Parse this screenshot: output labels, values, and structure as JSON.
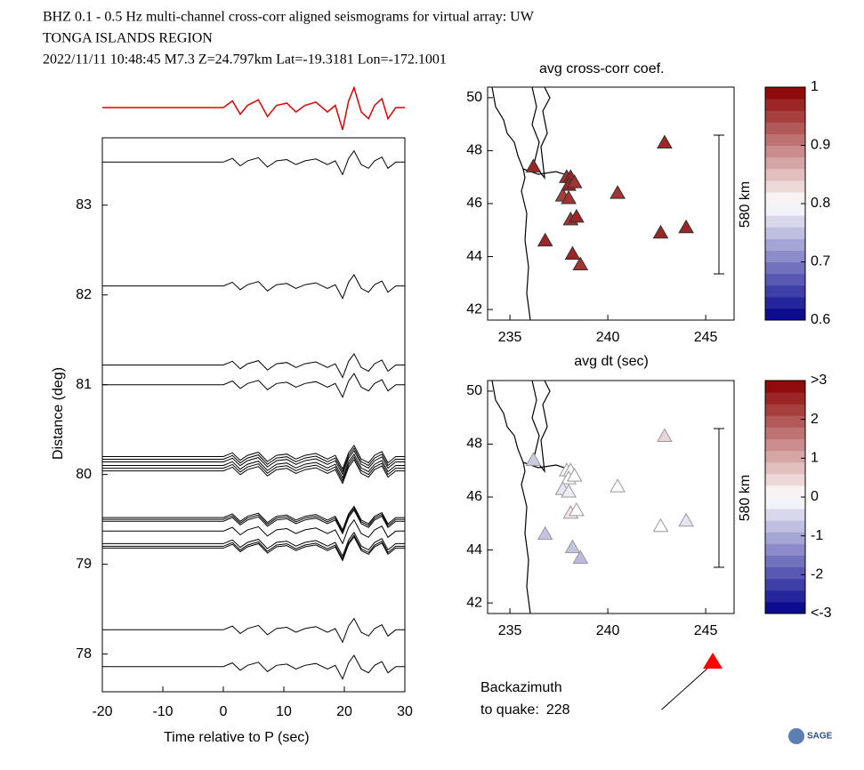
{
  "header": {
    "lines": [
      "BHZ  0.1 - 0.5 Hz  multi-channel cross-corr aligned seismograms for virtual array: UW",
      "TONGA ISLANDS REGION",
      "2022/11/11  10:48:45  M7.3  Z=24.797km Lat=-19.3181 Lon=-172.1001"
    ],
    "logo": "SAGE"
  },
  "backazimuth": {
    "label1": "Backazimuth",
    "label2": "to quake:",
    "value": 228
  },
  "chart_data": [
    {
      "type": "seismogram",
      "xlabel": "Time relative to P (sec)",
      "ylabel": "Distance (deg)",
      "xlim": [
        -20,
        30
      ],
      "xticks": [
        -20,
        -10,
        0,
        10,
        20,
        30
      ],
      "ylim": [
        77.58,
        83.75
      ],
      "yticks": [
        78,
        79,
        80,
        81,
        82,
        83
      ],
      "stack_color": "#e00000",
      "trace_color": "#000000",
      "waveform": {
        "t": [
          -20,
          0,
          1.5,
          2.8,
          4,
          5.8,
          7.3,
          8.8,
          10.5,
          12,
          13.5,
          15.3,
          17.2,
          18.5,
          19.7,
          20.7,
          21.6,
          22.8,
          24,
          25,
          26.2,
          27.2,
          28.5,
          30
        ],
        "amp": [
          0,
          0,
          0.3,
          -0.3,
          0.1,
          0.35,
          -0.4,
          0.1,
          0.2,
          -0.2,
          0.1,
          0.25,
          -0.2,
          0.1,
          -1,
          0.3,
          0.9,
          -0.2,
          -0.5,
          0.1,
          0.4,
          -0.5,
          0,
          0
        ]
      },
      "distances": [
        83.48,
        82.1,
        81.22,
        81.0,
        80.2,
        80.17,
        80.14,
        80.1,
        80.07,
        80.04,
        79.52,
        79.5,
        79.48,
        79.37,
        79.23,
        79.2,
        79.18,
        78.27,
        77.86
      ]
    },
    {
      "type": "map-scatter",
      "title": "avg cross-corr coef.",
      "xlim": [
        233.86,
        246.45
      ],
      "xticks": [
        235,
        240,
        245
      ],
      "ylim": [
        41.6,
        50.4
      ],
      "yticks": [
        42,
        44,
        46,
        48,
        50
      ],
      "x": [
        236.2,
        237.9,
        238.1,
        238.0,
        238.3,
        237.7,
        238.0,
        238.1,
        238.4,
        240.5,
        242.9,
        236.8,
        238.2,
        238.6,
        242.7,
        244.0
      ],
      "y": [
        47.4,
        47.0,
        47.0,
        46.7,
        46.8,
        46.3,
        46.2,
        45.4,
        45.5,
        46.4,
        48.3,
        44.6,
        44.1,
        43.7,
        44.9,
        45.1
      ],
      "values": [
        0.97,
        0.96,
        0.97,
        0.97,
        0.96,
        0.95,
        0.96,
        0.96,
        0.97,
        0.96,
        0.97,
        0.97,
        0.97,
        0.96,
        0.97,
        0.97
      ],
      "colorbar": {
        "lim": [
          0.6,
          1
        ],
        "ticks": [
          0.6,
          0.7,
          0.8,
          0.9,
          1
        ]
      },
      "scale_label": "580 km"
    },
    {
      "type": "map-scatter",
      "title": "avg dt (sec)",
      "xlim": [
        233.86,
        246.45
      ],
      "xticks": [
        235,
        240,
        245
      ],
      "ylim": [
        41.6,
        50.4
      ],
      "yticks": [
        42,
        44,
        46,
        48,
        50
      ],
      "x": [
        236.2,
        237.9,
        238.1,
        238.0,
        238.3,
        237.7,
        238.0,
        238.1,
        238.4,
        240.5,
        242.9,
        236.8,
        238.2,
        238.6,
        242.7,
        244.0
      ],
      "y": [
        47.4,
        47.0,
        47.0,
        46.7,
        46.8,
        46.3,
        46.2,
        45.4,
        45.5,
        46.4,
        48.3,
        44.6,
        44.1,
        43.7,
        44.9,
        45.1
      ],
      "values": [
        -0.6,
        0,
        0.1,
        0,
        0,
        -0.3,
        -0.2,
        0.3,
        0,
        0,
        0.5,
        -0.7,
        -0.7,
        -0.8,
        0,
        -0.3
      ],
      "colorbar": {
        "lim": [
          -3,
          3
        ],
        "ticks": [
          {
            "value": 3,
            "label": ">3"
          },
          2,
          1,
          0,
          -1,
          -2,
          {
            "value": -3,
            "label": "<-3"
          }
        ]
      },
      "scale_label": "580 km"
    }
  ]
}
